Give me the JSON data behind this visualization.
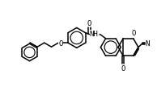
{
  "bg_color": "#ffffff",
  "line_color": "#000000",
  "lw": 1.1,
  "fs": 6.5,
  "figsize": [
    1.94,
    1.14
  ],
  "dpi": 100,
  "xlim": [
    0,
    11
  ],
  "ylim": [
    0,
    6.5
  ]
}
